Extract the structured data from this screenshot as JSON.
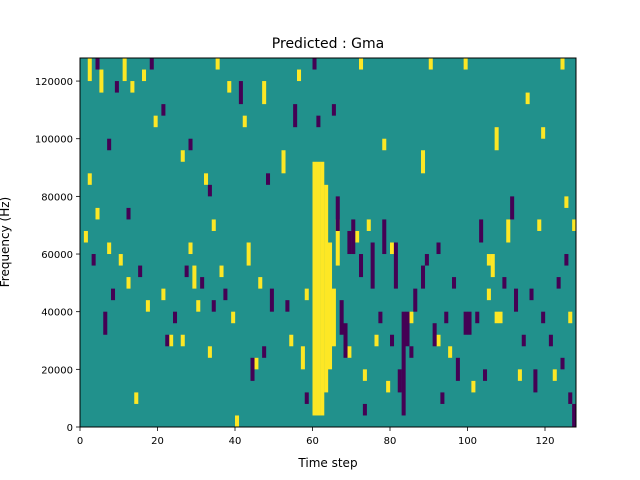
{
  "chart_data": {
    "type": "heatmap",
    "title": "Predicted : Gma",
    "xlabel": "Time step",
    "ylabel": "Frequency (Hz)",
    "xlim": [
      0,
      128
    ],
    "ylim": [
      0,
      128000
    ],
    "xticks": [
      0,
      20,
      40,
      60,
      80,
      100,
      120
    ],
    "yticks": [
      0,
      20000,
      40000,
      60000,
      80000,
      100000,
      120000
    ],
    "grid": false,
    "legend": "none",
    "colormap": "viridis",
    "colors": {
      "background": "#21918c",
      "high": "#fde725",
      "low": "#440154"
    },
    "bin_height_hz": 4000,
    "cells": {
      "high": [
        [
          60,
          4000,
          92000
        ],
        [
          61,
          4000,
          92000
        ],
        [
          62,
          4000,
          92000
        ],
        [
          63,
          12000,
          84000
        ],
        [
          64,
          20000,
          64000
        ],
        [
          65,
          28000,
          48000
        ],
        [
          57,
          20000,
          28000
        ],
        [
          66,
          56000,
          72000
        ],
        [
          2,
          120000,
          128000
        ],
        [
          5,
          116000,
          124000
        ],
        [
          11,
          120000,
          128000
        ],
        [
          13,
          116000,
          120000
        ],
        [
          16,
          120000,
          124000
        ],
        [
          19,
          104000,
          108000
        ],
        [
          26,
          92000,
          96000
        ],
        [
          32,
          84000,
          88000
        ],
        [
          35,
          124000,
          128000
        ],
        [
          38,
          116000,
          120000
        ],
        [
          42,
          104000,
          108000
        ],
        [
          47,
          112000,
          120000
        ],
        [
          52,
          88000,
          96000
        ],
        [
          56,
          120000,
          124000
        ],
        [
          72,
          124000,
          128000
        ],
        [
          78,
          96000,
          100000
        ],
        [
          88,
          88000,
          96000
        ],
        [
          90,
          124000,
          128000
        ],
        [
          99,
          124000,
          128000
        ],
        [
          107,
          96000,
          104000
        ],
        [
          115,
          112000,
          116000
        ],
        [
          119,
          100000,
          104000
        ],
        [
          124,
          124000,
          128000
        ],
        [
          2,
          84000,
          88000
        ],
        [
          4,
          72000,
          76000
        ],
        [
          7,
          60000,
          64000
        ],
        [
          10,
          56000,
          60000
        ],
        [
          12,
          48000,
          52000
        ],
        [
          17,
          40000,
          44000
        ],
        [
          21,
          44000,
          48000
        ],
        [
          23,
          28000,
          32000
        ],
        [
          28,
          60000,
          64000
        ],
        [
          29,
          48000,
          56000
        ],
        [
          30,
          40000,
          44000
        ],
        [
          34,
          68000,
          72000
        ],
        [
          36,
          52000,
          56000
        ],
        [
          39,
          36000,
          40000
        ],
        [
          43,
          56000,
          64000
        ],
        [
          46,
          48000,
          52000
        ],
        [
          71,
          64000,
          68000
        ],
        [
          74,
          68000,
          72000
        ],
        [
          80,
          60000,
          64000
        ],
        [
          76,
          28000,
          32000
        ],
        [
          73,
          16000,
          20000
        ],
        [
          79,
          12000,
          16000
        ],
        [
          95,
          24000,
          28000
        ],
        [
          105,
          56000,
          60000
        ],
        [
          106,
          52000,
          60000
        ],
        [
          107,
          36000,
          40000
        ],
        [
          108,
          36000,
          40000
        ],
        [
          105,
          44000,
          48000
        ],
        [
          110,
          64000,
          72000
        ],
        [
          118,
          68000,
          72000
        ],
        [
          122,
          16000,
          20000
        ],
        [
          126,
          36000,
          40000
        ],
        [
          1,
          64000,
          68000
        ],
        [
          14,
          8000,
          12000
        ],
        [
          26,
          28000,
          32000
        ],
        [
          33,
          24000,
          28000
        ],
        [
          40,
          0,
          4000
        ],
        [
          45,
          20000,
          24000
        ],
        [
          54,
          28000,
          32000
        ],
        [
          58,
          44000,
          48000
        ],
        [
          69,
          24000,
          28000
        ],
        [
          85,
          36000,
          40000
        ],
        [
          92,
          28000,
          32000
        ],
        [
          101,
          12000,
          16000
        ],
        [
          113,
          16000,
          20000
        ],
        [
          125,
          76000,
          80000
        ],
        [
          127,
          68000,
          72000
        ]
      ],
      "low": [
        [
          4,
          124000,
          128000
        ],
        [
          7,
          96000,
          100000
        ],
        [
          9,
          116000,
          120000
        ],
        [
          18,
          124000,
          128000
        ],
        [
          21,
          108000,
          112000
        ],
        [
          28,
          96000,
          100000
        ],
        [
          33,
          80000,
          84000
        ],
        [
          41,
          112000,
          120000
        ],
        [
          48,
          84000,
          88000
        ],
        [
          55,
          104000,
          112000
        ],
        [
          60,
          124000,
          128000
        ],
        [
          66,
          68000,
          80000
        ],
        [
          69,
          60000,
          68000
        ],
        [
          70,
          60000,
          72000
        ],
        [
          72,
          52000,
          60000
        ],
        [
          75,
          48000,
          64000
        ],
        [
          78,
          60000,
          72000
        ],
        [
          80,
          28000,
          32000
        ],
        [
          81,
          48000,
          64000
        ],
        [
          82,
          12000,
          20000
        ],
        [
          83,
          4000,
          40000
        ],
        [
          84,
          28000,
          40000
        ],
        [
          86,
          40000,
          48000
        ],
        [
          88,
          48000,
          56000
        ],
        [
          91,
          28000,
          36000
        ],
        [
          94,
          36000,
          40000
        ],
        [
          99,
          32000,
          40000
        ],
        [
          100,
          32000,
          40000
        ],
        [
          102,
          36000,
          40000
        ],
        [
          104,
          16000,
          20000
        ],
        [
          112,
          40000,
          48000
        ],
        [
          117,
          12000,
          20000
        ],
        [
          119,
          36000,
          40000
        ],
        [
          121,
          28000,
          32000
        ],
        [
          124,
          20000,
          24000
        ],
        [
          126,
          8000,
          12000
        ],
        [
          3,
          56000,
          60000
        ],
        [
          6,
          32000,
          40000
        ],
        [
          8,
          44000,
          48000
        ],
        [
          15,
          52000,
          56000
        ],
        [
          22,
          28000,
          32000
        ],
        [
          24,
          36000,
          40000
        ],
        [
          27,
          52000,
          56000
        ],
        [
          31,
          48000,
          52000
        ],
        [
          37,
          44000,
          48000
        ],
        [
          44,
          16000,
          24000
        ],
        [
          47,
          24000,
          28000
        ],
        [
          49,
          40000,
          48000
        ],
        [
          53,
          40000,
          44000
        ],
        [
          58,
          8000,
          12000
        ],
        [
          67,
          32000,
          44000
        ],
        [
          68,
          24000,
          36000
        ],
        [
          73,
          4000,
          8000
        ],
        [
          77,
          36000,
          40000
        ],
        [
          85,
          24000,
          28000
        ],
        [
          89,
          56000,
          60000
        ],
        [
          93,
          8000,
          12000
        ],
        [
          97,
          16000,
          24000
        ],
        [
          103,
          64000,
          72000
        ],
        [
          109,
          48000,
          52000
        ],
        [
          111,
          72000,
          80000
        ],
        [
          114,
          28000,
          32000
        ],
        [
          116,
          44000,
          48000
        ],
        [
          123,
          48000,
          52000
        ],
        [
          125,
          56000,
          60000
        ],
        [
          127,
          0,
          8000
        ],
        [
          92,
          60000,
          64000
        ],
        [
          96,
          48000,
          52000
        ],
        [
          12,
          72000,
          76000
        ],
        [
          34,
          40000,
          44000
        ],
        [
          61,
          104000,
          108000
        ],
        [
          65,
          108000,
          112000
        ]
      ]
    }
  }
}
